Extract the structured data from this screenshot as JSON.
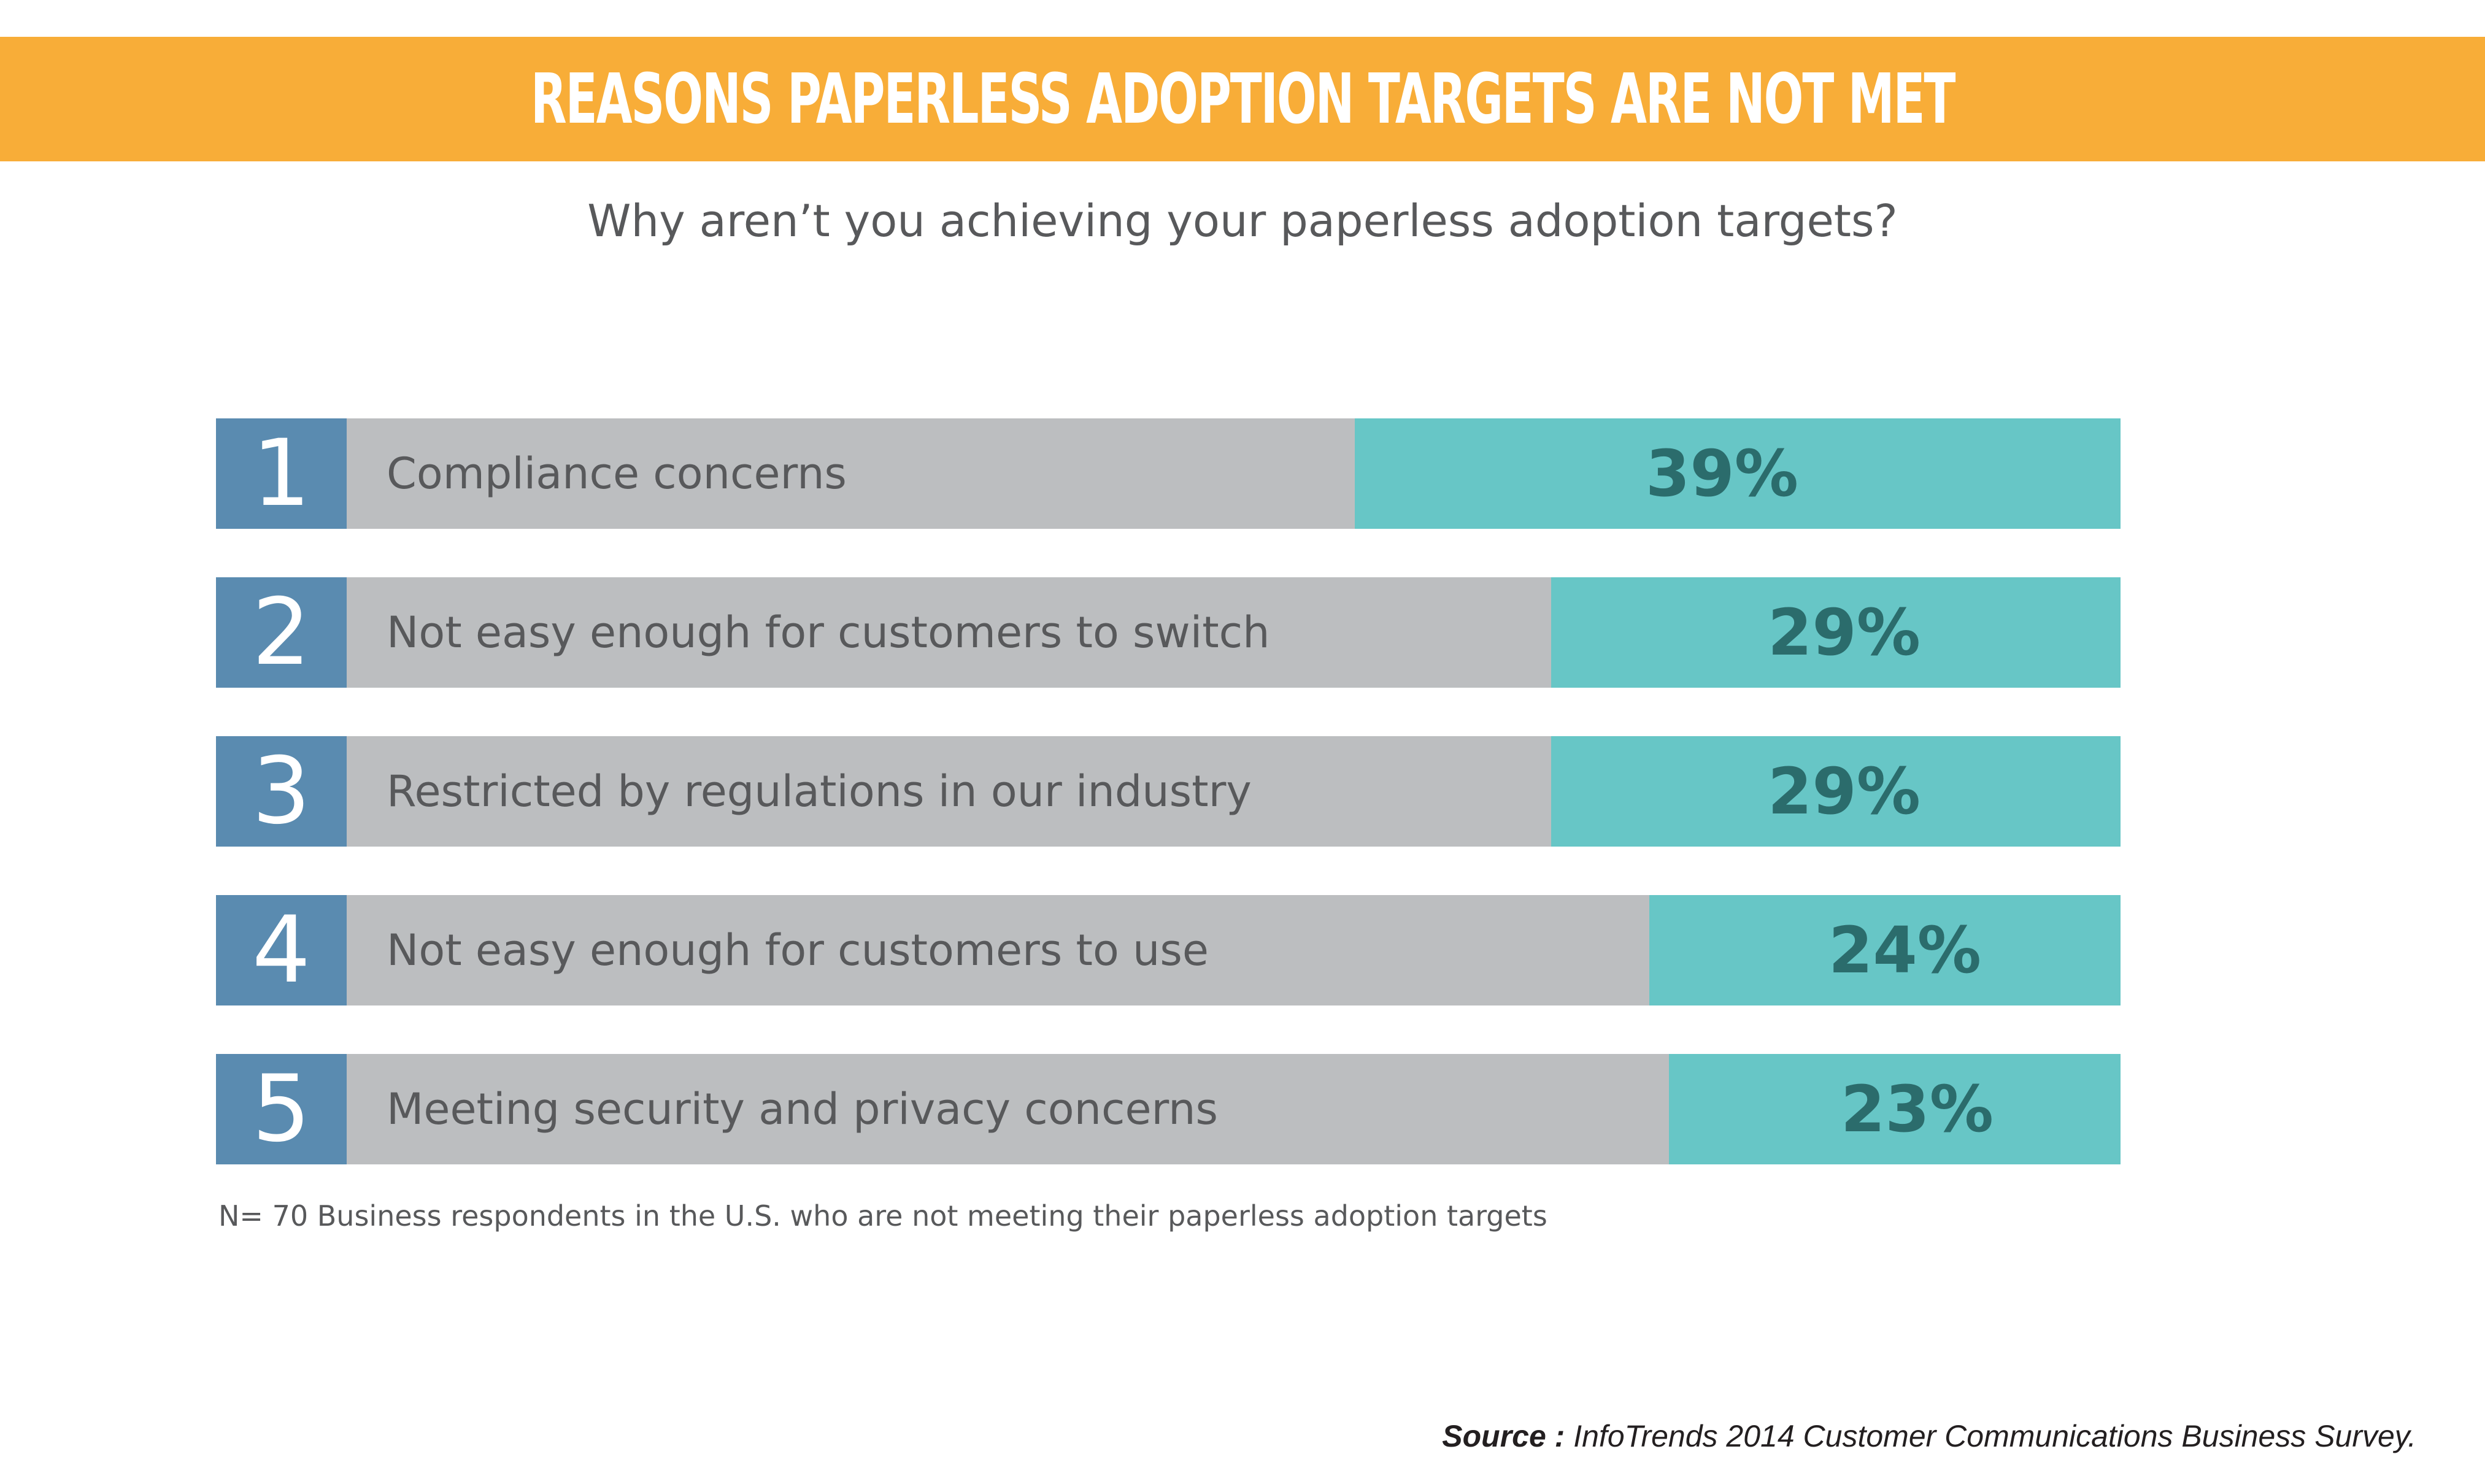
{
  "header": {
    "title": "REASONS PAPERLESS ADOPTION TARGETS ARE NOT MET",
    "subtitle": "Why aren’t you achieving your paperless adoption targets?"
  },
  "colors": {
    "banner": "#f8ad38",
    "rank_box": "#5a8bb0",
    "bar_background": "#bcbec0",
    "value_bar": "#67c6c6",
    "value_text": "#2b6c6c"
  },
  "chart_data": {
    "type": "bar",
    "orientation": "horizontal",
    "title": "Why aren’t you achieving your paperless adoption targets?",
    "ranks": [
      "1",
      "2",
      "3",
      "4",
      "5"
    ],
    "categories": [
      "Compliance concerns",
      "Not easy enough for customers to switch",
      "Restricted by regulations in our industry",
      "Not easy enough for customers to use",
      "Meeting security and privacy concerns"
    ],
    "values": [
      39,
      29,
      29,
      24,
      23
    ],
    "value_labels": [
      "39%",
      "29%",
      "29%",
      "24%",
      "23%"
    ],
    "unit": "%",
    "xlim": [
      0,
      100
    ],
    "grid": false,
    "legend": "none"
  },
  "footnote": "N= 70 Business respondents in the U.S. who are not meeting their paperless adoption targets",
  "source": {
    "label": "Source :",
    "text": "InfoTrends 2014 Customer Communications Business Survey."
  }
}
